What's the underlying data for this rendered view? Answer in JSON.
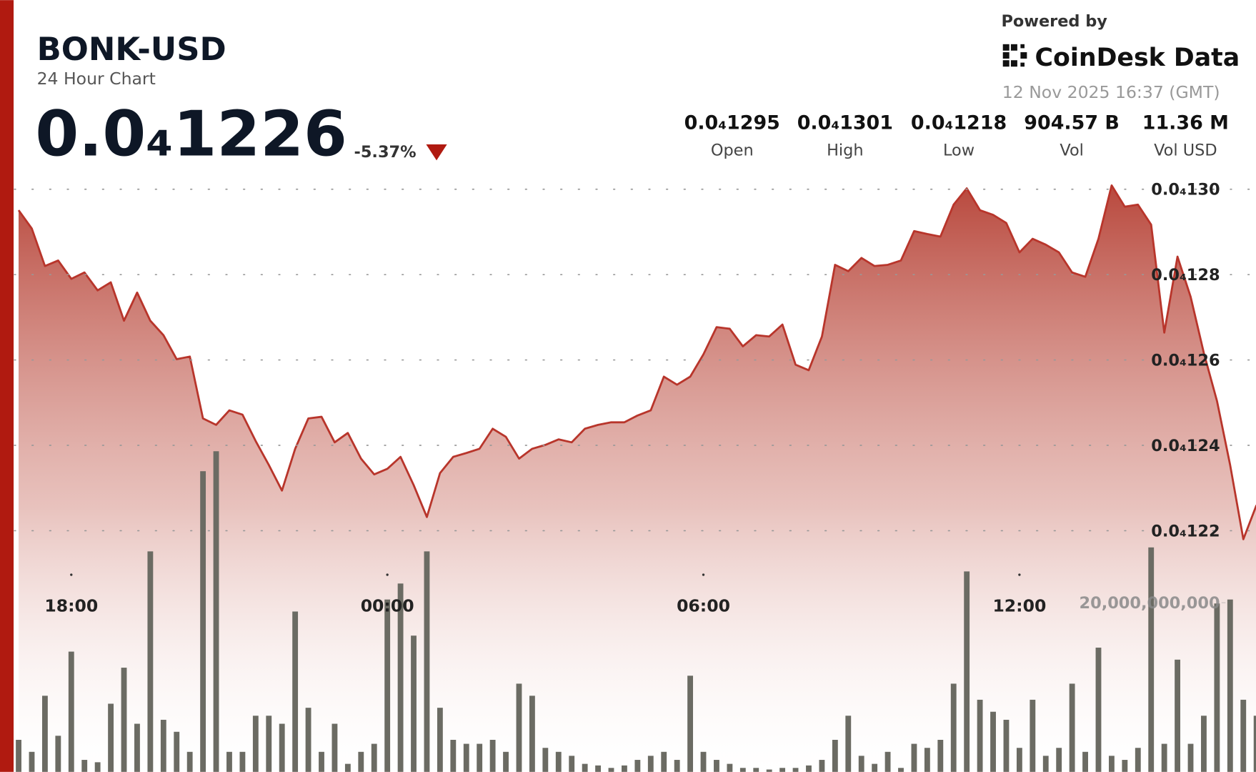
{
  "header": {
    "title": "BONK-USD",
    "subtitle": "24 Hour Chart",
    "price": "0.0₄1226",
    "change": "-5.37%",
    "powered_by": "Powered by",
    "brand": "CoinDesk Data",
    "timestamp": "12 Nov 2025 16:37 (GMT)"
  },
  "stats": [
    {
      "value": "0.0₄1295",
      "label": "Open"
    },
    {
      "value": "0.0₄1301",
      "label": "High"
    },
    {
      "value": "0.0₄1218",
      "label": "Low"
    },
    {
      "value": "904.57 B",
      "label": "Vol"
    },
    {
      "value": "11.36 M",
      "label": "Vol USD"
    }
  ],
  "chart_data": {
    "type": "line",
    "categories": [
      null,
      null,
      null,
      null,
      "18:00",
      null,
      null,
      null,
      null,
      null,
      null,
      null,
      null,
      null,
      null,
      null,
      null,
      null,
      null,
      null,
      null,
      null,
      null,
      null,
      null,
      null,
      null,
      null,
      "00:00",
      null,
      null,
      null,
      null,
      null,
      null,
      null,
      null,
      null,
      null,
      null,
      null,
      null,
      null,
      null,
      null,
      null,
      null,
      null,
      null,
      null,
      null,
      null,
      "06:00",
      null,
      null,
      null,
      null,
      null,
      null,
      null,
      null,
      null,
      null,
      null,
      null,
      null,
      null,
      null,
      null,
      null,
      null,
      null,
      null,
      null,
      null,
      null,
      "12:00",
      null,
      null,
      null,
      null,
      null,
      null,
      null,
      null,
      null,
      null,
      null,
      null,
      null,
      null,
      null,
      null,
      null,
      null
    ],
    "series": [
      {
        "type": "line",
        "color": "#b8352b",
        "values": [
          1.2951e-05,
          1.2908e-05,
          1.282e-05,
          1.2833e-05,
          1.279e-05,
          1.2805e-05,
          1.2763e-05,
          1.2782e-05,
          1.2692e-05,
          1.2758e-05,
          1.2692e-05,
          1.2658e-05,
          1.2602e-05,
          1.2608e-05,
          1.2463e-05,
          1.2448e-05,
          1.2482e-05,
          1.2472e-05,
          1.241e-05,
          1.2354e-05,
          1.2294e-05,
          1.2392e-05,
          1.2463e-05,
          1.2467e-05,
          1.2407e-05,
          1.2429e-05,
          1.2369e-05,
          1.2332e-05,
          1.2345e-05,
          1.2373e-05,
          1.2307e-05,
          1.2232e-05,
          1.2335e-05,
          1.2373e-05,
          1.2382e-05,
          1.2392e-05,
          1.2439e-05,
          1.242e-05,
          1.2369e-05,
          1.2392e-05,
          1.2401e-05,
          1.2414e-05,
          1.2407e-05,
          1.2439e-05,
          1.2448e-05,
          1.2454e-05,
          1.2454e-05,
          1.247e-05,
          1.2482e-05,
          1.2561e-05,
          1.2542e-05,
          1.2561e-05,
          1.2613e-05,
          1.2677e-05,
          1.2673e-05,
          1.2632e-05,
          1.2658e-05,
          1.2655e-05,
          1.2683e-05,
          1.2589e-05,
          1.2576e-05,
          1.2655e-05,
          1.2823e-05,
          1.2808e-05,
          1.2839e-05,
          1.282e-05,
          1.2823e-05,
          1.2833e-05,
          1.2902e-05,
          1.2895e-05,
          1.2889e-05,
          1.2964e-05,
          1.3002e-05,
          1.2951e-05,
          1.294e-05,
          1.2921e-05,
          1.2852e-05,
          1.2884e-05,
          1.287e-05,
          1.2852e-05,
          1.2805e-05,
          1.2795e-05,
          1.2884e-05,
          1.3009e-05,
          1.2959e-05,
          1.2964e-05,
          1.2917e-05,
          1.2664e-05,
          1.2842e-05,
          1.2748e-05,
          1.2617e-05,
          1.2504e-05,
          1.2354e-05,
          1.218e-05,
          1.226e-05
        ]
      },
      {
        "type": "bar",
        "axis": "y2",
        "color": "#6b6b63",
        "values": [
          3790000000.0,
          2370000000.0,
          9000000000.0,
          4270000000.0,
          14220000000.0,
          1420000000.0,
          1140000000.0,
          8060000000.0,
          12320000000.0,
          5690000000.0,
          26070000000.0,
          6160000000.0,
          4740000000.0,
          2370000000.0,
          35550000000.0,
          37910000000.0,
          2370000000.0,
          2370000000.0,
          6640000000.0,
          6640000000.0,
          5690000000.0,
          18960000000.0,
          7580000000.0,
          2370000000.0,
          5690000000.0,
          950000000.0,
          2370000000.0,
          3320000000.0,
          20380000000.0,
          22270000000.0,
          16110000000.0,
          26070000000.0,
          7580000000.0,
          3790000000.0,
          3320000000.0,
          3320000000.0,
          3790000000.0,
          2370000000.0,
          10430000000.0,
          9000000000.0,
          2840000000.0,
          2370000000.0,
          1900000000.0,
          950000000.0,
          760000000.0,
          470000000.0,
          760000000.0,
          1420000000.0,
          1900000000.0,
          2370000000.0,
          1420000000.0,
          11370000000.0,
          2370000000.0,
          1420000000.0,
          950000000.0,
          470000000.0,
          470000000.0,
          280000000.0,
          470000000.0,
          470000000.0,
          760000000.0,
          1420000000.0,
          3790000000.0,
          6640000000.0,
          1900000000.0,
          950000000.0,
          2370000000.0,
          470000000.0,
          3320000000.0,
          2840000000.0,
          3790000000.0,
          10430000000.0,
          23700000000.0,
          8530000000.0,
          7110000000.0,
          6160000000.0,
          2840000000.0,
          8530000000.0,
          1900000000.0,
          2840000000.0,
          10430000000.0,
          2370000000.0,
          14690000000.0,
          1900000000.0,
          1420000000.0,
          2840000000.0,
          26540000000.0,
          3320000000.0,
          13270000000.0,
          3320000000.0,
          6640000000.0,
          19910000000.0,
          20380000000.0,
          8530000000.0,
          6640000000.0
        ]
      }
    ],
    "ylim": [
      1.1635e-05,
      1.303e-05
    ],
    "yticks": [
      {
        "value": 1.3e-05,
        "label": "0.0₄130"
      },
      {
        "value": 1.28e-05,
        "label": "0.0₄128"
      },
      {
        "value": 1.26e-05,
        "label": "0.0₄126"
      },
      {
        "value": 1.24e-05,
        "label": "0.0₄124"
      },
      {
        "value": 1.22e-05,
        "label": "0.0₄122"
      }
    ],
    "y2lim": [
      0,
      70400000000.0
    ],
    "y2ticks": [
      {
        "value": 20000000000.0,
        "label": "20,000,000,000"
      }
    ],
    "grid": true
  }
}
